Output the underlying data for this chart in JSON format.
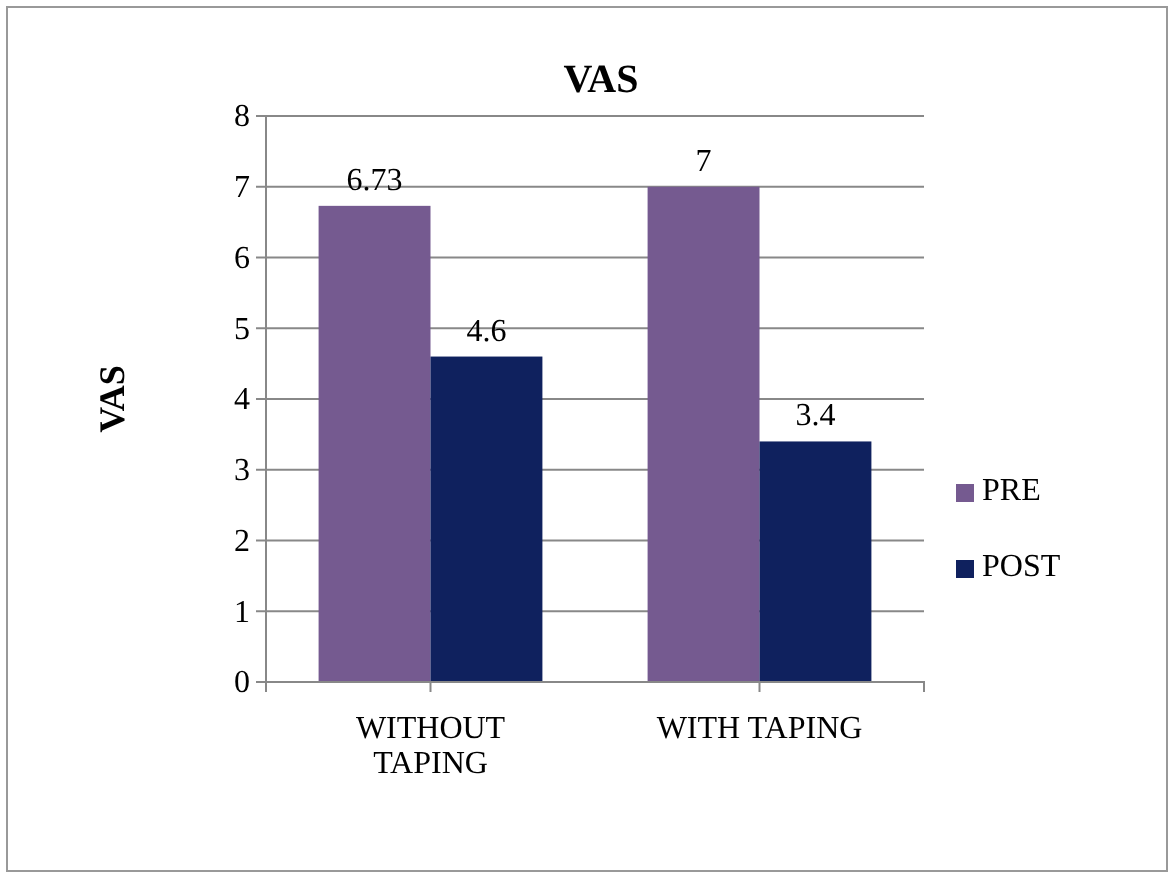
{
  "chart_data": {
    "type": "bar",
    "title": "VAS",
    "ylabel": "VAS",
    "categories": [
      "WITHOUT TAPING",
      "WITH TAPING"
    ],
    "series": [
      {
        "name": "PRE",
        "color": "#755a90",
        "values": [
          6.73,
          7
        ]
      },
      {
        "name": "POST",
        "color": "#0f215e",
        "values": [
          4.6,
          3.4
        ]
      }
    ],
    "ylim": [
      0,
      8
    ],
    "yticks": [
      0,
      1,
      2,
      3,
      4,
      5,
      6,
      7,
      8
    ],
    "grid": "y",
    "legend": "right",
    "data_labels": true
  }
}
